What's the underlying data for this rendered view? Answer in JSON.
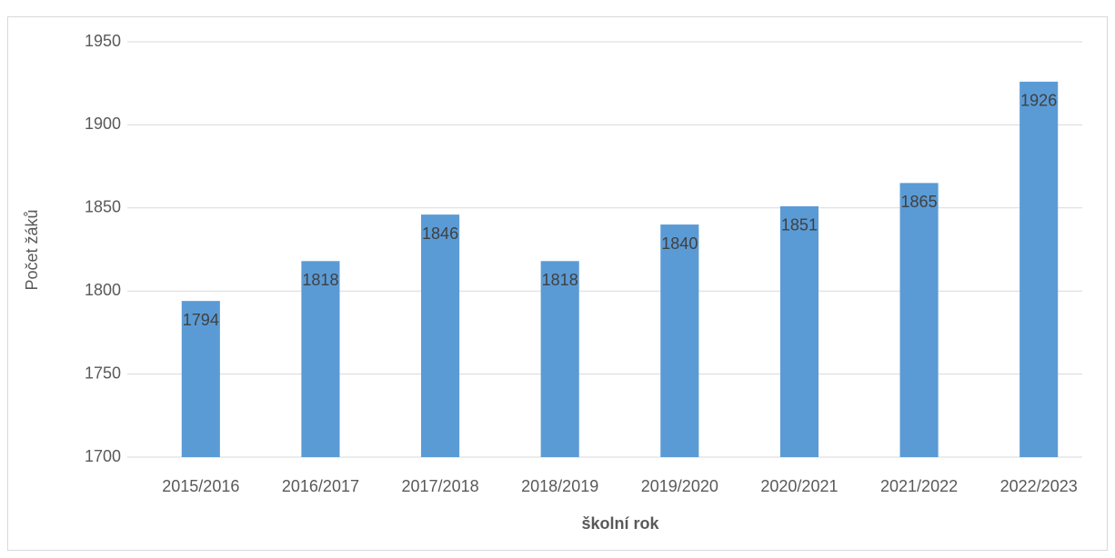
{
  "chart_data": {
    "type": "bar",
    "x_label": "školní rok",
    "y_label": "Počet žáků",
    "categories": [
      "2015/2016",
      "2016/2017",
      "2017/2018",
      "2018/2019",
      "2019/2020",
      "2020/2021",
      "2021/2022",
      "2022/2023"
    ],
    "values": [
      1794,
      1818,
      1846,
      1818,
      1840,
      1851,
      1865,
      1926
    ],
    "color": "#5b9bd5",
    "ylim": [
      1700,
      1950
    ],
    "yticks": [
      1700,
      1750,
      1800,
      1850,
      1900,
      1950
    ],
    "grid": true
  }
}
